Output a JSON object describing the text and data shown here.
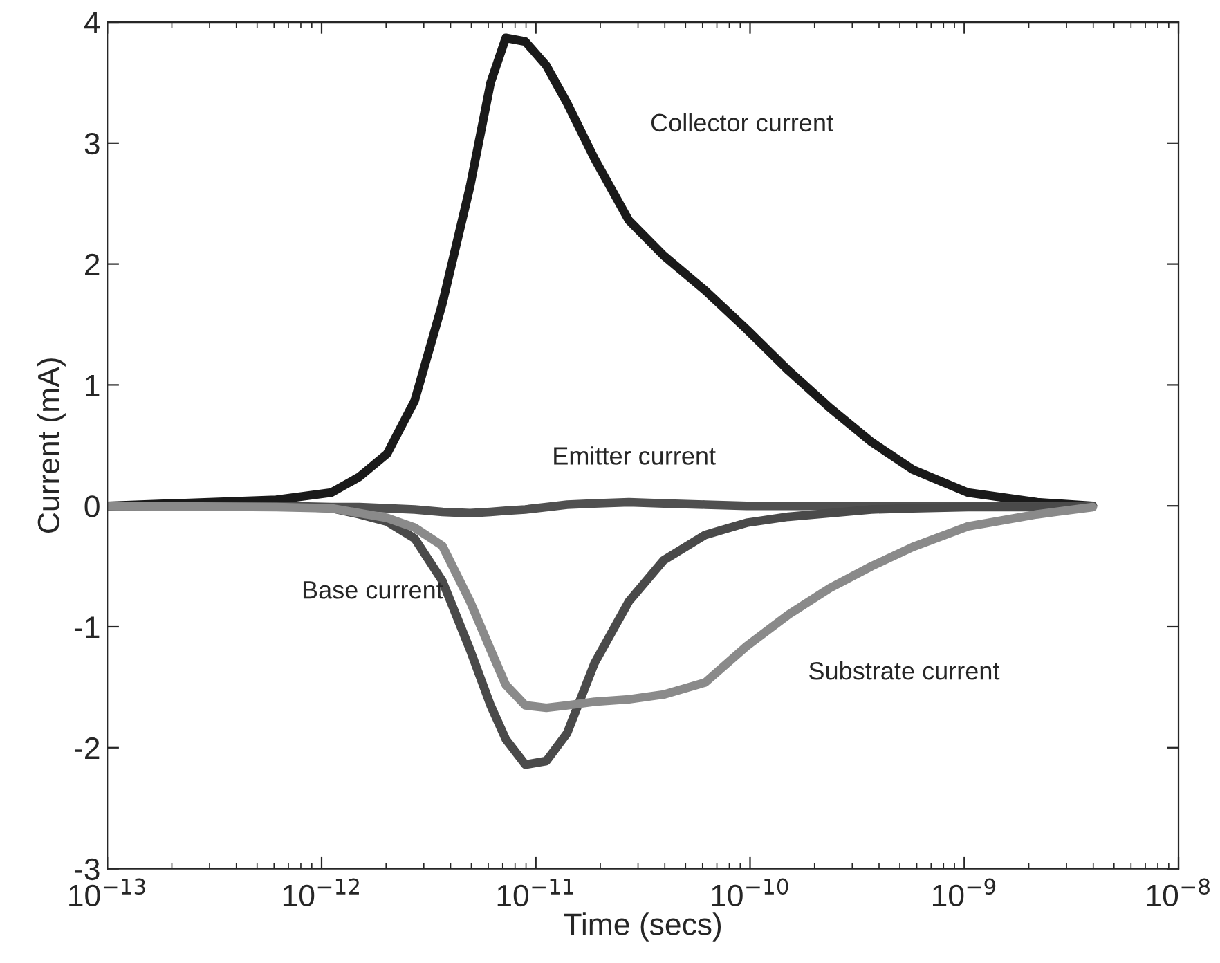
{
  "chart_data": {
    "type": "line",
    "xlabel": "Time (secs)",
    "ylabel": "Current (mA)",
    "log": "x",
    "grid": false,
    "legend": false,
    "line_style": "solid",
    "marker": "none",
    "x": [
      1e-13,
      6.14e-13,
      1.11e-12,
      1.5e-12,
      2.02e-12,
      2.72e-12,
      3.66e-12,
      4.93e-12,
      6.15e-12,
      7.24e-12,
      8.93e-12,
      1.12e-11,
      1.4e-11,
      1.88e-11,
      2.72e-11,
      3.95e-11,
      6.18e-11,
      9.64e-11,
      1.51e-10,
      2.36e-10,
      3.68e-10,
      5.75e-10,
      1.04e-09,
      2.19e-09,
      3.98e-09
    ],
    "xlim": [
      1e-13,
      1e-08
    ],
    "xticks": [
      {
        "value": 1e-13,
        "label": "10$^{−13}$"
      },
      {
        "value": 1e-12,
        "label": "10$^{−12}$"
      },
      {
        "value": 1e-11,
        "label": "10$^{−11}$"
      },
      {
        "value": 1e-10,
        "label": "10$^{−10}$"
      },
      {
        "value": 1e-09,
        "label": "10$^{−9}$"
      },
      {
        "value": 1e-08,
        "label": "10$^{−8}$"
      }
    ],
    "ylim": [
      -3,
      4
    ],
    "yticks": [
      -3,
      -2,
      -1,
      0,
      1,
      2,
      3,
      4
    ],
    "series": [
      {
        "name": "Collector current",
        "color": "#1a1a1a",
        "values": [
          0,
          0.05,
          0.11,
          0.24,
          0.43,
          0.87,
          1.67,
          2.64,
          3.5,
          3.87,
          3.84,
          3.64,
          3.33,
          2.87,
          2.36,
          2.07,
          1.78,
          1.46,
          1.12,
          0.81,
          0.53,
          0.3,
          0.11,
          0.03,
          0
        ]
      },
      {
        "name": "Emitter current",
        "color": "#505050",
        "values": [
          0,
          0,
          -0.01,
          -0.01,
          -0.02,
          -0.03,
          -0.05,
          -0.06,
          -0.05,
          -0.04,
          -0.03,
          -0.01,
          0.01,
          0.02,
          0.03,
          0.02,
          0.01,
          0,
          0,
          0,
          0,
          0,
          0,
          0,
          0
        ]
      },
      {
        "name": "Base current",
        "color": "#4a4a4a",
        "values": [
          0,
          0,
          -0.02,
          -0.07,
          -0.13,
          -0.27,
          -0.62,
          -1.19,
          -1.65,
          -1.93,
          -2.14,
          -2.11,
          -1.88,
          -1.3,
          -0.79,
          -0.45,
          -0.24,
          -0.14,
          -0.09,
          -0.06,
          -0.03,
          -0.02,
          -0.01,
          -0.01,
          0
        ]
      },
      {
        "name": "Substrate current",
        "color": "#8a8a8a",
        "values": [
          0,
          -0.01,
          -0.02,
          -0.06,
          -0.1,
          -0.18,
          -0.33,
          -0.79,
          -1.19,
          -1.48,
          -1.65,
          -1.67,
          -1.65,
          -1.62,
          -1.6,
          -1.56,
          -1.46,
          -1.16,
          -0.9,
          -0.68,
          -0.5,
          -0.34,
          -0.17,
          -0.07,
          -0.01
        ]
      }
    ]
  }
}
